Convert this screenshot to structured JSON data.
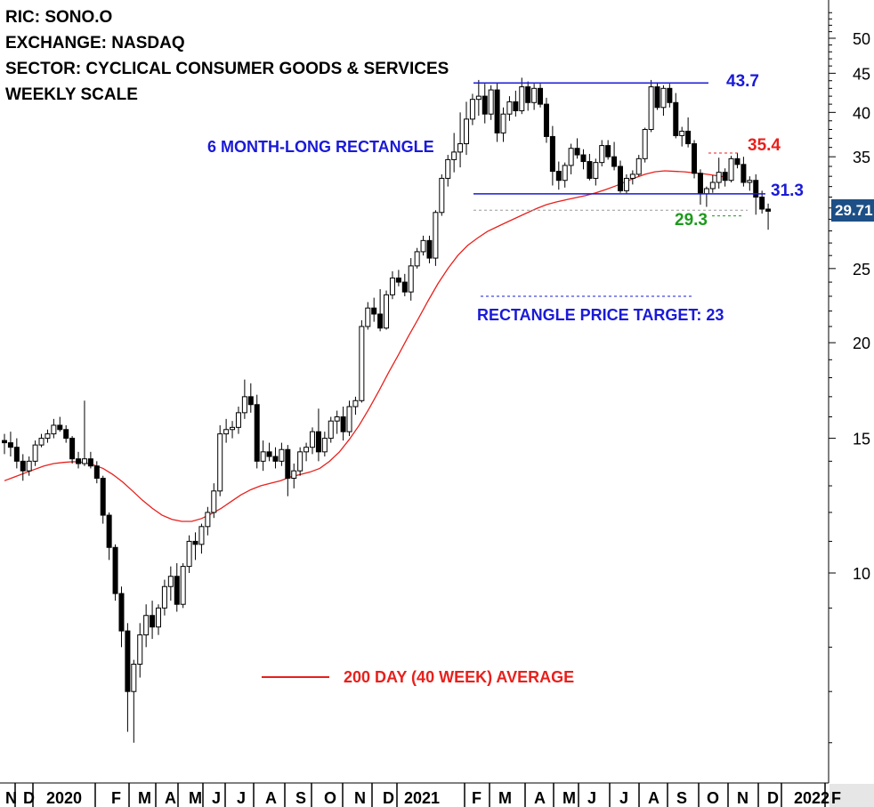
{
  "header": {
    "ric": "RIC: SONO.O",
    "exchange": "EXCHANGE: NASDAQ",
    "sector": "SECTOR: CYCLICAL CONSUMER GOODS & SERVICES",
    "scale": "WEEKLY SCALE"
  },
  "annotations": {
    "rectangle": "6 MONTH-LONG RECTANGLE",
    "target": "RECTANGLE PRICE TARGET: 23",
    "ma_legend": "200 DAY (40 WEEK) AVERAGE",
    "level_top": "43.7",
    "level_bottom": "31.3",
    "level_high": "35.4",
    "level_low": "29.3",
    "last_price": "29.71"
  },
  "colors": {
    "candle": "#000000",
    "moving_average": "#e8201c",
    "rectangle_lines": "#1a1ad8",
    "resistance_dashed": "#e8201c",
    "support_dashed": "#1e9a1e",
    "price_badge": "#1d4f86"
  },
  "chart_data": {
    "type": "candlestick",
    "scale": "log",
    "ylim": [
      5.5,
      56
    ],
    "y_ticks": [
      10,
      15,
      20,
      25,
      30,
      35,
      40,
      45,
      50
    ],
    "x_labels": [
      "N",
      "D",
      "2020",
      "F",
      "M",
      "A",
      "M",
      "J",
      "J",
      "A",
      "S",
      "O",
      "N",
      "D",
      "2021",
      "F",
      "M",
      "A",
      "M",
      "J",
      "J",
      "A",
      "S",
      "O",
      "N",
      "D",
      "2022",
      "F"
    ],
    "levels": {
      "rectangle_top": 43.7,
      "rectangle_bottom": 31.3,
      "resistance": 35.4,
      "support": 29.3,
      "price_target": 23
    },
    "last_price": 29.71,
    "weekly_ohlc": [
      [
        14.9,
        15.2,
        14.3,
        14.8
      ],
      [
        14.8,
        15.3,
        14.2,
        14.6
      ],
      [
        14.6,
        15.0,
        13.7,
        14.0
      ],
      [
        14.0,
        14.3,
        13.2,
        13.6
      ],
      [
        13.6,
        14.2,
        13.4,
        14.0
      ],
      [
        14.0,
        14.9,
        13.8,
        14.7
      ],
      [
        14.7,
        15.2,
        14.6,
        15.0
      ],
      [
        15.0,
        15.4,
        14.8,
        15.2
      ],
      [
        15.2,
        15.9,
        15.0,
        15.6
      ],
      [
        15.6,
        16.0,
        15.3,
        15.4
      ],
      [
        15.4,
        15.6,
        14.8,
        15.0
      ],
      [
        15.0,
        15.1,
        13.9,
        14.1
      ],
      [
        14.1,
        14.4,
        13.7,
        13.9
      ],
      [
        13.9,
        16.8,
        13.8,
        14.1
      ],
      [
        14.1,
        14.4,
        13.7,
        13.8
      ],
      [
        13.8,
        14.0,
        13.1,
        13.3
      ],
      [
        13.3,
        13.4,
        11.6,
        11.9
      ],
      [
        11.9,
        12.0,
        10.4,
        10.8
      ],
      [
        10.8,
        10.9,
        9.2,
        9.4
      ],
      [
        9.4,
        9.6,
        8.0,
        8.4
      ],
      [
        8.4,
        8.6,
        6.2,
        7.0
      ],
      [
        7.0,
        7.7,
        6.0,
        7.6
      ],
      [
        7.6,
        8.6,
        7.3,
        8.3
      ],
      [
        8.3,
        9.1,
        8.0,
        8.8
      ],
      [
        8.8,
        9.2,
        8.2,
        8.5
      ],
      [
        8.5,
        9.1,
        8.3,
        9.0
      ],
      [
        9.0,
        9.8,
        8.8,
        9.6
      ],
      [
        9.6,
        10.2,
        9.2,
        9.9
      ],
      [
        9.9,
        10.3,
        8.9,
        9.1
      ],
      [
        9.1,
        10.3,
        9.0,
        10.2
      ],
      [
        10.2,
        11.2,
        10.0,
        11.0
      ],
      [
        11.0,
        11.3,
        10.4,
        10.9
      ],
      [
        10.9,
        11.6,
        10.6,
        11.5
      ],
      [
        11.5,
        12.2,
        11.2,
        12.0
      ],
      [
        12.0,
        13.1,
        11.8,
        12.8
      ],
      [
        12.8,
        15.6,
        12.6,
        15.2
      ],
      [
        15.2,
        15.9,
        14.8,
        15.4
      ],
      [
        15.4,
        15.8,
        15.0,
        15.5
      ],
      [
        15.5,
        16.5,
        15.2,
        16.2
      ],
      [
        16.2,
        17.9,
        15.9,
        17.0
      ],
      [
        17.0,
        17.7,
        16.2,
        16.6
      ],
      [
        16.6,
        17.1,
        13.7,
        14.0
      ],
      [
        14.0,
        14.9,
        13.6,
        14.4
      ],
      [
        14.4,
        14.8,
        14.0,
        14.2
      ],
      [
        14.2,
        14.6,
        13.7,
        14.0
      ],
      [
        14.0,
        14.8,
        13.8,
        14.5
      ],
      [
        14.5,
        14.7,
        12.6,
        13.3
      ],
      [
        13.3,
        13.9,
        12.9,
        13.6
      ],
      [
        13.6,
        14.6,
        13.4,
        14.4
      ],
      [
        14.4,
        14.8,
        14.0,
        14.6
      ],
      [
        14.6,
        15.5,
        14.3,
        15.3
      ],
      [
        15.3,
        16.4,
        14.0,
        14.4
      ],
      [
        14.4,
        15.3,
        14.2,
        15.0
      ],
      [
        15.0,
        16.0,
        14.8,
        15.8
      ],
      [
        15.8,
        16.3,
        15.2,
        16.0
      ],
      [
        16.0,
        16.5,
        14.9,
        15.3
      ],
      [
        15.3,
        16.8,
        15.1,
        16.5
      ],
      [
        16.5,
        17.0,
        16.1,
        16.8
      ],
      [
        16.8,
        21.4,
        16.7,
        21.0
      ],
      [
        21.0,
        22.6,
        20.8,
        22.2
      ],
      [
        22.2,
        22.9,
        21.3,
        21.8
      ],
      [
        21.8,
        23.5,
        20.7,
        20.9
      ],
      [
        20.9,
        23.4,
        20.8,
        23.1
      ],
      [
        23.1,
        24.8,
        22.8,
        24.3
      ],
      [
        24.3,
        24.9,
        23.7,
        24.0
      ],
      [
        24.0,
        24.6,
        23.0,
        23.3
      ],
      [
        23.3,
        25.8,
        22.7,
        25.2
      ],
      [
        25.2,
        26.6,
        25.0,
        26.3
      ],
      [
        26.3,
        27.6,
        26.0,
        27.2
      ],
      [
        27.2,
        27.6,
        25.4,
        25.8
      ],
      [
        25.8,
        29.8,
        25.2,
        29.6
      ],
      [
        29.6,
        33.2,
        29.3,
        32.8
      ],
      [
        32.8,
        35.2,
        32.0,
        34.7
      ],
      [
        34.7,
        37.6,
        33.4,
        35.5
      ],
      [
        35.5,
        40.0,
        33.9,
        36.4
      ],
      [
        36.4,
        41.3,
        35.2,
        39.2
      ],
      [
        39.2,
        42.3,
        38.5,
        41.6
      ],
      [
        41.6,
        44.1,
        39.6,
        42.0
      ],
      [
        42.0,
        43.6,
        38.7,
        39.8
      ],
      [
        39.8,
        43.4,
        39.1,
        42.8
      ],
      [
        42.8,
        43.7,
        36.6,
        37.6
      ],
      [
        37.6,
        40.6,
        36.6,
        39.8
      ],
      [
        39.8,
        42.0,
        39.0,
        41.3
      ],
      [
        41.3,
        42.7,
        39.5,
        40.2
      ],
      [
        40.2,
        44.4,
        39.8,
        43.2
      ],
      [
        43.2,
        43.9,
        40.2,
        41.2
      ],
      [
        41.2,
        43.6,
        40.3,
        43.0
      ],
      [
        43.0,
        43.6,
        40.6,
        41.0
      ],
      [
        41.0,
        41.8,
        36.5,
        37.2
      ],
      [
        37.2,
        38.4,
        32.1,
        33.5
      ],
      [
        33.5,
        34.5,
        31.7,
        32.6
      ],
      [
        32.6,
        34.4,
        31.9,
        34.1
      ],
      [
        34.1,
        36.4,
        33.2,
        35.9
      ],
      [
        35.9,
        37.0,
        34.8,
        35.2
      ],
      [
        35.2,
        35.8,
        33.7,
        34.5
      ],
      [
        34.5,
        35.3,
        32.6,
        32.8
      ],
      [
        32.8,
        34.8,
        32.1,
        34.4
      ],
      [
        34.4,
        36.8,
        34.0,
        36.2
      ],
      [
        36.2,
        36.8,
        34.7,
        35.0
      ],
      [
        35.0,
        36.6,
        33.6,
        34.0
      ],
      [
        34.0,
        34.6,
        31.4,
        31.6
      ],
      [
        31.6,
        33.2,
        31.3,
        32.8
      ],
      [
        32.8,
        33.6,
        32.2,
        33.2
      ],
      [
        33.2,
        35.2,
        33.0,
        34.8
      ],
      [
        34.8,
        38.2,
        34.4,
        38.0
      ],
      [
        38.0,
        44.1,
        37.7,
        43.2
      ],
      [
        43.2,
        43.8,
        40.3,
        40.6
      ],
      [
        40.6,
        43.4,
        39.6,
        43.0
      ],
      [
        43.0,
        43.6,
        40.6,
        41.2
      ],
      [
        41.2,
        42.4,
        37.0,
        37.3
      ],
      [
        37.3,
        38.3,
        36.1,
        37.8
      ],
      [
        37.8,
        39.4,
        36.0,
        36.4
      ],
      [
        36.4,
        36.8,
        32.8,
        33.3
      ],
      [
        33.3,
        33.7,
        30.3,
        31.3
      ],
      [
        31.3,
        32.0,
        30.1,
        31.8
      ],
      [
        31.8,
        33.1,
        31.4,
        32.4
      ],
      [
        32.4,
        34.9,
        31.8,
        33.4
      ],
      [
        33.4,
        33.8,
        32.0,
        32.6
      ],
      [
        32.6,
        35.1,
        32.4,
        34.8
      ],
      [
        34.8,
        35.4,
        33.8,
        34.2
      ],
      [
        34.2,
        35.0,
        32.0,
        32.4
      ],
      [
        32.4,
        33.0,
        31.6,
        32.6
      ],
      [
        32.6,
        33.2,
        29.4,
        31.0
      ],
      [
        31.0,
        31.6,
        29.5,
        29.9
      ],
      [
        29.9,
        30.4,
        28.1,
        29.71
      ]
    ],
    "moving_average_40wk": [
      13.2,
      13.35,
      13.5,
      13.65,
      13.8,
      13.9,
      13.95,
      13.98,
      13.95,
      13.85,
      13.7,
      13.45,
      13.15,
      12.8,
      12.45,
      12.15,
      11.9,
      11.75,
      11.68,
      11.68,
      11.78,
      11.95,
      12.15,
      12.4,
      12.65,
      12.85,
      13.0,
      13.1,
      13.2,
      13.35,
      13.45,
      13.55,
      13.7,
      14.0,
      14.4,
      14.95,
      15.6,
      16.4,
      17.3,
      18.3,
      19.3,
      20.4,
      21.5,
      22.7,
      23.9,
      25.0,
      26.0,
      26.8,
      27.4,
      27.95,
      28.35,
      28.75,
      29.15,
      29.55,
      29.95,
      30.3,
      30.55,
      30.75,
      30.95,
      31.15,
      31.4,
      31.7,
      32.05,
      32.45,
      32.85,
      33.2,
      33.45,
      33.55,
      33.5,
      33.45,
      33.35,
      33.25,
      33.1,
      32.95
    ]
  }
}
